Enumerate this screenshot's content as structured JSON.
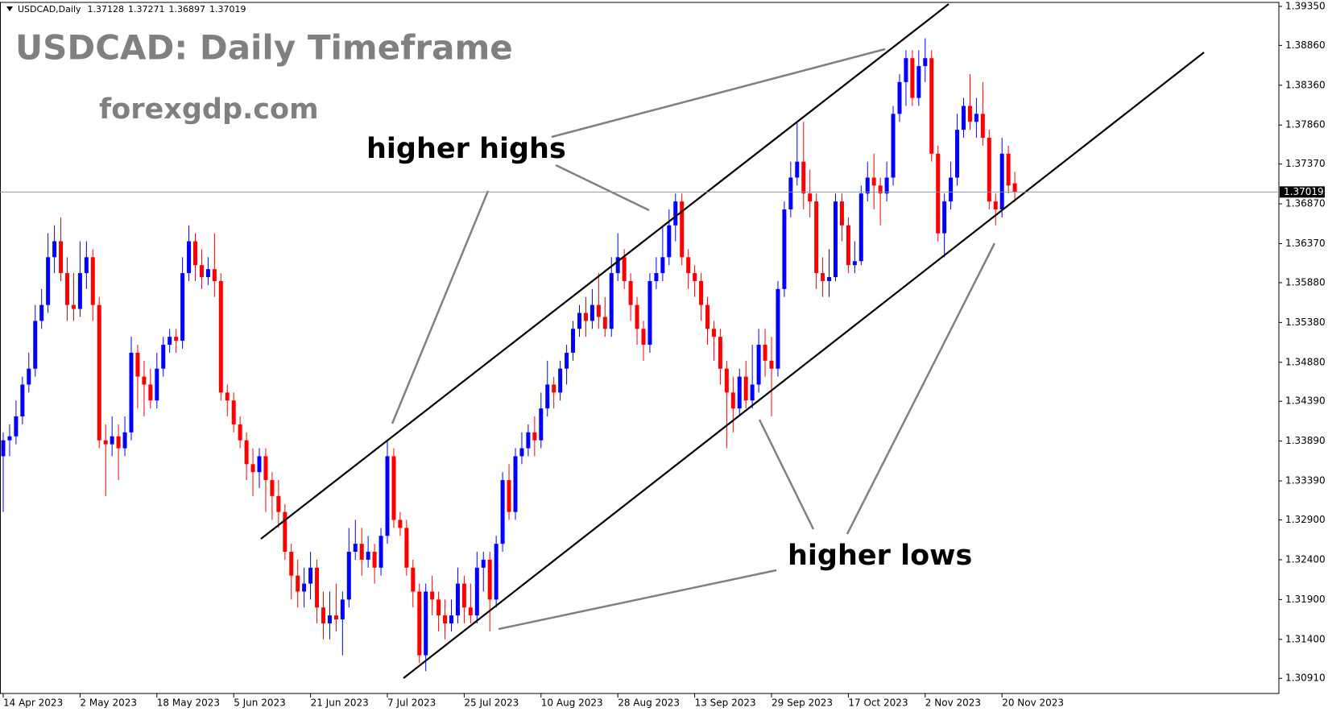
{
  "chart_data": {
    "type": "candlestick",
    "header_symbol": "USDCAD,Daily",
    "title": "USDCAD: Daily Timeframe",
    "subtitle": "forexgdp.com",
    "annotations": [
      "higher highs",
      "higher lows"
    ],
    "up_color": "#0000ff",
    "down_color": "#ff0000",
    "categories": [
      "14 Apr 2023",
      null,
      null,
      null,
      null,
      null,
      null,
      null,
      null,
      null,
      null,
      null,
      "2 May 2023",
      null,
      null,
      null,
      null,
      null,
      null,
      null,
      null,
      null,
      null,
      null,
      "18 May 2023",
      null,
      null,
      null,
      null,
      null,
      null,
      null,
      null,
      null,
      null,
      null,
      "5 Jun 2023",
      null,
      null,
      null,
      null,
      null,
      null,
      null,
      null,
      null,
      null,
      null,
      "21 Jun 2023",
      null,
      null,
      null,
      null,
      null,
      null,
      null,
      null,
      null,
      null,
      null,
      "7 Jul 2023",
      null,
      null,
      null,
      null,
      null,
      null,
      null,
      null,
      null,
      null,
      null,
      "25 Jul 2023",
      null,
      null,
      null,
      null,
      null,
      null,
      null,
      null,
      null,
      null,
      null,
      "10 Aug 2023",
      null,
      null,
      null,
      null,
      null,
      null,
      null,
      null,
      null,
      null,
      null,
      "28 Aug 2023",
      null,
      null,
      null,
      null,
      null,
      null,
      null,
      null,
      null,
      null,
      null,
      "13 Sep 2023",
      null,
      null,
      null,
      null,
      null,
      null,
      null,
      null,
      null,
      null,
      null,
      "29 Sep 2023",
      null,
      null,
      null,
      null,
      null,
      null,
      null,
      null,
      null,
      null,
      null,
      "17 Oct 2023",
      null,
      null,
      null,
      null,
      null,
      null,
      null,
      null,
      null,
      null,
      null,
      "2 Nov 2023",
      null,
      null,
      null,
      null,
      null,
      null,
      null,
      null,
      null,
      null,
      null,
      "20 Nov 2023",
      null,
      null
    ],
    "open": [
      1.337,
      1.339,
      1.3395,
      1.342,
      1.346,
      1.348,
      1.354,
      1.356,
      1.362,
      1.364,
      1.36,
      1.356,
      1.3555,
      1.36,
      1.362,
      1.356,
      1.339,
      1.3385,
      1.3395,
      1.338,
      1.34,
      1.35,
      1.347,
      1.346,
      1.344,
      1.348,
      1.351,
      1.352,
      1.3515,
      1.36,
      1.364,
      1.361,
      1.3595,
      1.3605,
      1.359,
      1.345,
      1.344,
      1.341,
      1.339,
      1.336,
      1.335,
      1.337,
      1.334,
      1.332,
      1.33,
      1.325,
      1.322,
      1.32,
      1.321,
      1.323,
      1.318,
      1.316,
      1.317,
      1.3165,
      1.319,
      1.325,
      1.326,
      1.324,
      1.325,
      1.323,
      1.327,
      1.337,
      1.329,
      1.328,
      1.323,
      1.32,
      1.312,
      1.32,
      1.319,
      1.317,
      1.316,
      1.317,
      1.321,
      1.318,
      1.317,
      1.323,
      1.324,
      1.319,
      1.326,
      1.334,
      1.33,
      1.337,
      1.338,
      1.34,
      1.339,
      1.343,
      1.346,
      1.345,
      1.348,
      1.35,
      1.353,
      1.355,
      1.354,
      1.356,
      1.3545,
      1.353,
      1.36,
      1.362,
      1.359,
      1.356,
      1.353,
      1.351,
      1.359,
      1.36,
      1.362,
      1.366,
      1.369,
      1.362,
      1.36,
      1.359,
      1.356,
      1.353,
      1.352,
      1.348,
      1.345,
      1.343,
      1.347,
      1.344,
      1.346,
      1.351,
      1.349,
      1.348,
      1.358,
      1.368,
      1.372,
      1.374,
      1.37,
      1.369,
      1.36,
      1.359,
      1.3595,
      1.369,
      1.366,
      1.361,
      1.3615,
      1.37,
      1.372,
      1.371,
      1.37,
      1.372,
      1.38,
      1.384,
      1.387,
      1.382,
      1.386,
      1.387,
      1.375,
      1.365,
      1.369,
      1.372,
      1.378,
      1.381,
      1.379,
      1.38,
      1.377,
      1.369,
      1.368,
      1.375,
      1.37128
    ],
    "high": [
      1.34,
      1.341,
      1.344,
      1.347,
      1.35,
      1.356,
      1.358,
      1.365,
      1.366,
      1.367,
      1.362,
      1.36,
      1.364,
      1.364,
      1.363,
      1.357,
      1.341,
      1.342,
      1.341,
      1.342,
      1.352,
      1.351,
      1.349,
      1.348,
      1.35,
      1.352,
      1.353,
      1.353,
      1.362,
      1.366,
      1.365,
      1.363,
      1.362,
      1.365,
      1.36,
      1.346,
      1.345,
      1.342,
      1.34,
      1.338,
      1.338,
      1.338,
      1.335,
      1.334,
      1.331,
      1.326,
      1.324,
      1.323,
      1.325,
      1.324,
      1.32,
      1.32,
      1.321,
      1.32,
      1.328,
      1.329,
      1.328,
      1.327,
      1.326,
      1.328,
      1.339,
      1.338,
      1.33,
      1.329,
      1.324,
      1.321,
      1.321,
      1.322,
      1.32,
      1.319,
      1.319,
      1.323,
      1.322,
      1.321,
      1.325,
      1.325,
      1.325,
      1.327,
      1.335,
      1.336,
      1.338,
      1.34,
      1.341,
      1.342,
      1.345,
      1.349,
      1.347,
      1.349,
      1.351,
      1.354,
      1.356,
      1.357,
      1.358,
      1.36,
      1.357,
      1.362,
      1.365,
      1.363,
      1.36,
      1.357,
      1.354,
      1.36,
      1.362,
      1.366,
      1.368,
      1.37,
      1.37,
      1.363,
      1.361,
      1.36,
      1.357,
      1.354,
      1.353,
      1.349,
      1.347,
      1.348,
      1.349,
      1.351,
      1.353,
      1.353,
      1.352,
      1.359,
      1.369,
      1.374,
      1.379,
      1.379,
      1.373,
      1.37,
      1.362,
      1.363,
      1.37,
      1.37,
      1.367,
      1.364,
      1.371,
      1.374,
      1.375,
      1.372,
      1.374,
      1.381,
      1.385,
      1.388,
      1.388,
      1.388,
      1.3895,
      1.388,
      1.376,
      1.37,
      1.374,
      1.38,
      1.382,
      1.385,
      1.382,
      1.384,
      1.378,
      1.37,
      1.377,
      1.376,
      1.37271
    ],
    "low": [
      1.33,
      1.337,
      1.3385,
      1.341,
      1.345,
      1.347,
      1.353,
      1.355,
      1.36,
      1.359,
      1.354,
      1.354,
      1.3545,
      1.358,
      1.354,
      1.338,
      1.332,
      1.337,
      1.334,
      1.337,
      1.339,
      1.343,
      1.342,
      1.343,
      1.343,
      1.347,
      1.35,
      1.35,
      1.3505,
      1.359,
      1.359,
      1.358,
      1.3585,
      1.357,
      1.344,
      1.342,
      1.34,
      1.338,
      1.334,
      1.332,
      1.333,
      1.33,
      1.329,
      1.328,
      1.324,
      1.319,
      1.318,
      1.318,
      1.319,
      1.316,
      1.314,
      1.314,
      1.315,
      1.312,
      1.318,
      1.324,
      1.322,
      1.323,
      1.321,
      1.322,
      1.326,
      1.328,
      1.327,
      1.322,
      1.318,
      1.311,
      1.31,
      1.317,
      1.315,
      1.314,
      1.315,
      1.316,
      1.316,
      1.316,
      1.316,
      1.32,
      1.315,
      1.318,
      1.325,
      1.329,
      1.329,
      1.336,
      1.337,
      1.337,
      1.338,
      1.342,
      1.343,
      1.344,
      1.346,
      1.349,
      1.352,
      1.352,
      1.353,
      1.353,
      1.352,
      1.352,
      1.359,
      1.358,
      1.354,
      1.351,
      1.349,
      1.35,
      1.358,
      1.359,
      1.361,
      1.364,
      1.361,
      1.358,
      1.357,
      1.354,
      1.351,
      1.349,
      1.346,
      1.338,
      1.34,
      1.342,
      1.343,
      1.343,
      1.345,
      1.347,
      1.342,
      1.347,
      1.357,
      1.367,
      1.371,
      1.368,
      1.367,
      1.358,
      1.357,
      1.357,
      1.359,
      1.364,
      1.36,
      1.36,
      1.361,
      1.369,
      1.368,
      1.366,
      1.369,
      1.371,
      1.379,
      1.381,
      1.381,
      1.381,
      1.384,
      1.374,
      1.364,
      1.362,
      1.368,
      1.371,
      1.377,
      1.378,
      1.377,
      1.376,
      1.368,
      1.366,
      1.367,
      1.37,
      1.36897
    ],
    "close": [
      1.339,
      1.3395,
      1.342,
      1.346,
      1.348,
      1.354,
      1.356,
      1.362,
      1.364,
      1.36,
      1.356,
      1.3555,
      1.36,
      1.362,
      1.356,
      1.339,
      1.3385,
      1.3395,
      1.338,
      1.34,
      1.35,
      1.347,
      1.346,
      1.344,
      1.348,
      1.351,
      1.352,
      1.3515,
      1.36,
      1.364,
      1.361,
      1.3595,
      1.3605,
      1.359,
      1.345,
      1.344,
      1.341,
      1.339,
      1.336,
      1.335,
      1.337,
      1.334,
      1.332,
      1.33,
      1.325,
      1.322,
      1.32,
      1.321,
      1.323,
      1.318,
      1.316,
      1.317,
      1.3165,
      1.319,
      1.325,
      1.326,
      1.324,
      1.325,
      1.323,
      1.327,
      1.337,
      1.329,
      1.328,
      1.323,
      1.32,
      1.312,
      1.32,
      1.319,
      1.317,
      1.316,
      1.317,
      1.321,
      1.318,
      1.317,
      1.323,
      1.324,
      1.319,
      1.326,
      1.334,
      1.33,
      1.337,
      1.338,
      1.34,
      1.339,
      1.343,
      1.346,
      1.345,
      1.348,
      1.35,
      1.353,
      1.355,
      1.354,
      1.356,
      1.3545,
      1.353,
      1.36,
      1.362,
      1.359,
      1.356,
      1.353,
      1.351,
      1.359,
      1.36,
      1.362,
      1.366,
      1.369,
      1.362,
      1.36,
      1.359,
      1.356,
      1.353,
      1.352,
      1.348,
      1.345,
      1.343,
      1.347,
      1.344,
      1.346,
      1.351,
      1.349,
      1.348,
      1.358,
      1.368,
      1.372,
      1.374,
      1.37,
      1.369,
      1.36,
      1.359,
      1.3595,
      1.369,
      1.366,
      1.361,
      1.3615,
      1.37,
      1.372,
      1.371,
      1.37,
      1.372,
      1.38,
      1.384,
      1.387,
      1.382,
      1.386,
      1.387,
      1.375,
      1.365,
      1.369,
      1.372,
      1.378,
      1.381,
      1.379,
      1.38,
      1.377,
      1.369,
      1.368,
      1.375,
      1.371,
      1.37019
    ],
    "ylim": [
      1.3072,
      1.394
    ],
    "yticks": [
      {
        "value": 1.3935,
        "label": "1.39350"
      },
      {
        "value": 1.3886,
        "label": "1.38860"
      },
      {
        "value": 1.3836,
        "label": "1.38360"
      },
      {
        "value": 1.3786,
        "label": "1.37860"
      },
      {
        "value": 1.3737,
        "label": "1.37370"
      },
      {
        "value": 1.3687,
        "label": "1.36870"
      },
      {
        "value": 1.3637,
        "label": "1.36370"
      },
      {
        "value": 1.3588,
        "label": "1.35880"
      },
      {
        "value": 1.3538,
        "label": "1.35380"
      },
      {
        "value": 1.3488,
        "label": "1.34880"
      },
      {
        "value": 1.3439,
        "label": "1.34390"
      },
      {
        "value": 1.3389,
        "label": "1.33890"
      },
      {
        "value": 1.3339,
        "label": "1.33390"
      },
      {
        "value": 1.329,
        "label": "1.32900"
      },
      {
        "value": 1.324,
        "label": "1.32400"
      },
      {
        "value": 1.319,
        "label": "1.31900"
      },
      {
        "value": 1.314,
        "label": "1.31400"
      },
      {
        "value": 1.3091,
        "label": "1.30910"
      }
    ]
  }
}
